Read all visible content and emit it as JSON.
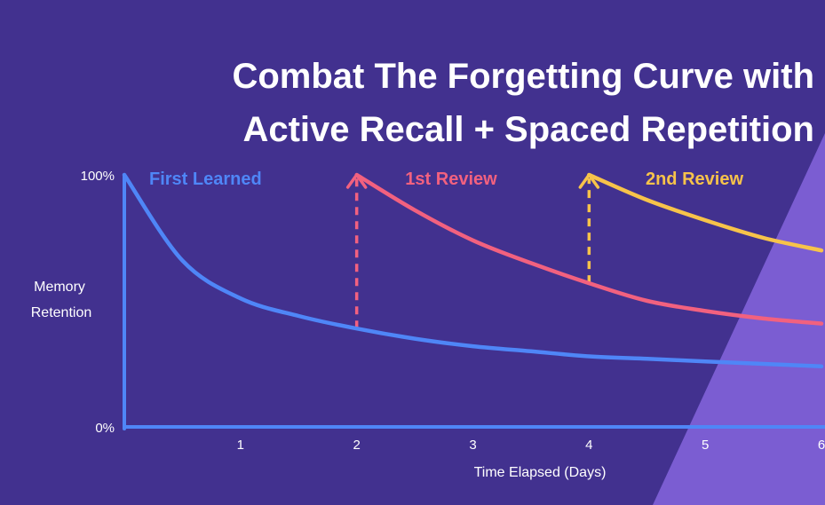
{
  "title_lines": [
    "Combat The Forgetting Curve with",
    "Active Recall + Spaced Repetition"
  ],
  "colors": {
    "background": "#42318f",
    "accent_wedge": "#7b5dd2",
    "axis": "#4f86f7",
    "first_learned": "#4f86f7",
    "first_review": "#f2617f",
    "second_review": "#f7c34a",
    "text": "#ffffff"
  },
  "chart_data": {
    "type": "line",
    "title": "Combat The Forgetting Curve with Active Recall + Spaced Repetition",
    "xlabel": "Time Elapsed (Days)",
    "ylabel": "Memory Retention",
    "xlim": [
      0,
      6
    ],
    "ylim": [
      0,
      100
    ],
    "x_ticks": [
      "1",
      "2",
      "3",
      "4",
      "5",
      "6"
    ],
    "y_ticks": [
      "0%",
      "100%"
    ],
    "grid": false,
    "series": [
      {
        "name": "First Learned",
        "color": "#4f86f7",
        "x": [
          0,
          0.5,
          1,
          1.5,
          2,
          2.5,
          3,
          3.5,
          4,
          4.5,
          5,
          5.5,
          6
        ],
        "y": [
          100,
          66,
          51,
          44,
          39,
          35,
          32,
          30,
          28,
          27,
          26,
          25,
          24
        ]
      },
      {
        "name": "1st Review",
        "color": "#f2617f",
        "x": [
          2,
          2.5,
          3,
          3.5,
          4,
          4.5,
          5,
          5.5,
          6
        ],
        "y": [
          100,
          86,
          74,
          65,
          57,
          50,
          46,
          43,
          41
        ]
      },
      {
        "name": "2nd Review",
        "color": "#f7c34a",
        "x": [
          4,
          4.5,
          5,
          5.5,
          6
        ],
        "y": [
          100,
          90,
          82,
          75,
          70
        ]
      }
    ],
    "review_arrows": [
      {
        "x": 2,
        "from_y": 39,
        "to_y": 100,
        "color": "#f2617f"
      },
      {
        "x": 4,
        "from_y": 57,
        "to_y": 100,
        "color": "#f7c34a"
      }
    ]
  }
}
